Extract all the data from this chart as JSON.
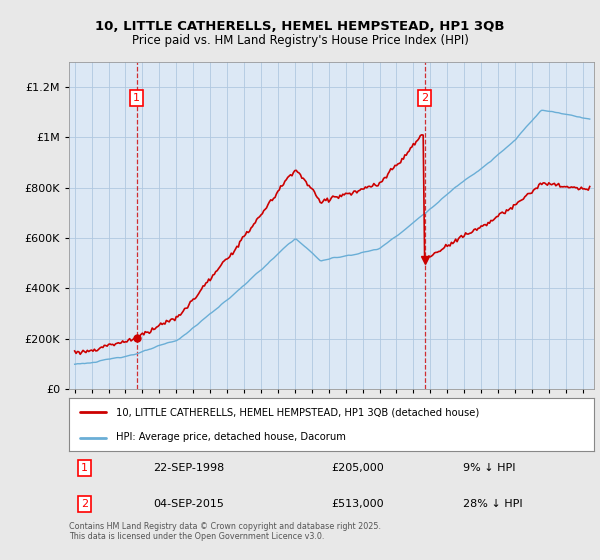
{
  "title_line1": "10, LITTLE CATHERELLS, HEMEL HEMPSTEAD, HP1 3QB",
  "title_line2": "Price paid vs. HM Land Registry's House Price Index (HPI)",
  "background_color": "#e8e8e8",
  "plot_bg_color": "#dce8f5",
  "grid_color": "#b0c8e0",
  "hpi_color": "#6aaed6",
  "price_color": "#cc0000",
  "sale1_label": "22-SEP-1998",
  "sale1_price": 205000,
  "sale1_pct": "9% ↓ HPI",
  "sale2_label": "04-SEP-2015",
  "sale2_price": 513000,
  "sale2_pct": "28% ↓ HPI",
  "ylim_min": 0,
  "ylim_max": 1300000,
  "yticks": [
    0,
    200000,
    400000,
    600000,
    800000,
    1000000,
    1200000
  ],
  "legend_line1": "10, LITTLE CATHERELLS, HEMEL HEMPSTEAD, HP1 3QB (detached house)",
  "legend_line2": "HPI: Average price, detached house, Dacorum",
  "footer": "Contains HM Land Registry data © Crown copyright and database right 2025.\nThis data is licensed under the Open Government Licence v3.0."
}
